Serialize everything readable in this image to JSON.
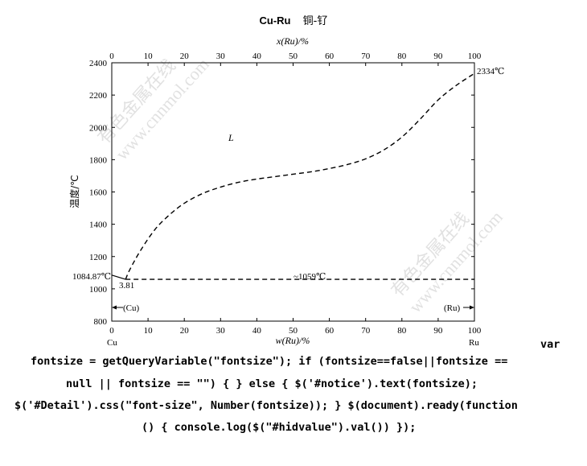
{
  "chart_data": {
    "type": "line",
    "title": "Cu-Ru",
    "title_cn": "铜-钌",
    "top_axis_label": "x(Ru)/%",
    "xlabel": "w(Ru)/%",
    "ylabel": "温度/℃",
    "xlim": [
      0,
      100
    ],
    "ylim": [
      800,
      2400
    ],
    "x_ticks": [
      0,
      10,
      20,
      30,
      40,
      50,
      60,
      70,
      80,
      90,
      100
    ],
    "top_ticks": [
      0,
      10,
      20,
      30,
      40,
      50,
      60,
      70,
      80,
      90,
      100
    ],
    "y_ticks": [
      800,
      1000,
      1200,
      1400,
      1600,
      1800,
      2000,
      2200,
      2400
    ],
    "grid": false,
    "liquidus": {
      "style": "dashed",
      "x": [
        3.81,
        5,
        8,
        12,
        16,
        20,
        25,
        30,
        35,
        40,
        45,
        50,
        55,
        60,
        65,
        70,
        75,
        80,
        85,
        90,
        95,
        100
      ],
      "y": [
        1059,
        1120,
        1240,
        1370,
        1460,
        1530,
        1590,
        1630,
        1660,
        1680,
        1695,
        1710,
        1725,
        1745,
        1770,
        1805,
        1860,
        1940,
        2050,
        2170,
        2260,
        2334
      ]
    },
    "cu_liquidus": {
      "style": "solid-short",
      "x": [
        0,
        3.81
      ],
      "y": [
        1084.87,
        1059
      ]
    },
    "eutectic": {
      "style": "dashed",
      "y": 1059,
      "x": [
        3.81,
        100
      ]
    },
    "labels": {
      "cu_melting": "1084.87℃",
      "ru_melting": "2334℃",
      "eutectic": "~1059℃",
      "eutectic_comp": "3.81",
      "liquid": "L",
      "cu_phase": "(Cu)",
      "ru_phase": "(Ru)",
      "left_element": "Cu",
      "right_element": "Ru"
    }
  },
  "code_text": {
    "line1": "var",
    "line2": "fontsize = getQueryVariable(\"fontsize\"); if (fontsize==false||fontsize ==",
    "line3": "null || fontsize == \"\") { } else { $('#notice').text(fontsize);",
    "line4": "$('#Detail').css(\"font-size\", Number(fontsize)); } $(document).ready(function",
    "line5": "() { console.log($(\"#hidvalue\").val()) });"
  },
  "watermark": {
    "cn": "有色金属在线",
    "url": "www.cnnmol.com"
  },
  "colors": {
    "line": "#000000",
    "background": "#ffffff",
    "watermark": "#c8c8c8"
  }
}
